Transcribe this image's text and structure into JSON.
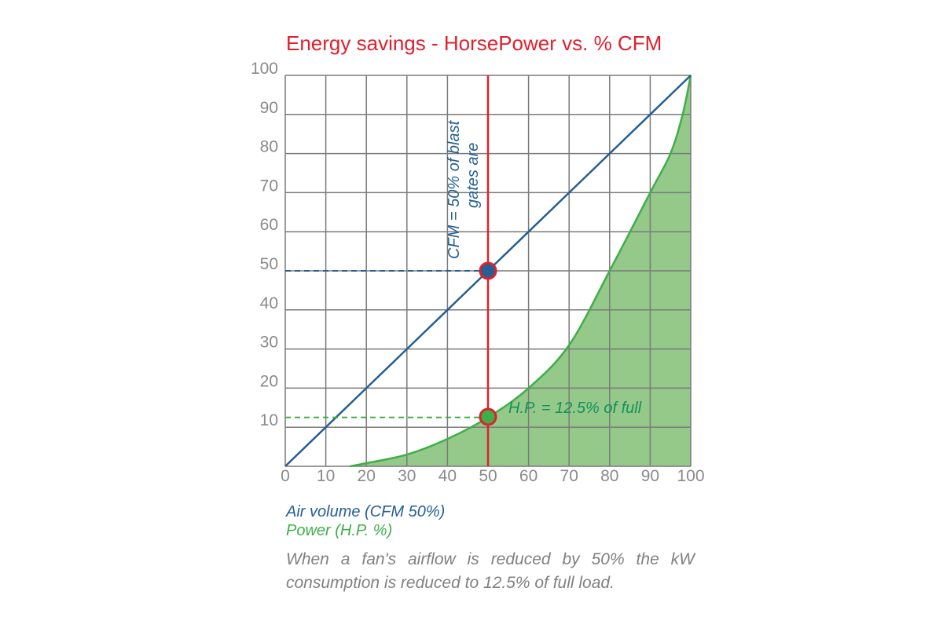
{
  "title": "Energy savings - HorsePower vs. % CFM",
  "legend": {
    "air_volume": "Air volume (CFM 50%)",
    "power": "Power (H.P. %)"
  },
  "caption": "When a fan's airflow is reduced by 50% the kW consumption is reduced to 12.5% of full load.",
  "annotations": {
    "cfm_line1": "CFM = 50% of blast",
    "cfm_line2": "gates are",
    "hp": "H.P. = 12.5% of full"
  },
  "colors": {
    "title": "#e0202e",
    "air_volume": "#255f93",
    "power_line": "#3fae49",
    "power_fill": "#94c98a",
    "marker_ring": "#e0202e",
    "grid": "#7a7a7a",
    "caption": "#808080"
  },
  "x_ticks": [
    "0",
    "10",
    "20",
    "30",
    "40",
    "50",
    "60",
    "70",
    "80",
    "90",
    "100"
  ],
  "y_ticks": [
    "100",
    "90",
    "80",
    "70",
    "60",
    "50",
    "40",
    "30",
    "20",
    "10"
  ],
  "chart_data": {
    "type": "line",
    "title": "Energy savings - HorsePower vs. % CFM",
    "xlabel": "",
    "ylabel": "",
    "xlim": [
      0,
      100
    ],
    "ylim": [
      0,
      100
    ],
    "grid": true,
    "legend_position": "bottom-left",
    "series": [
      {
        "name": "Air volume (CFM 50%)",
        "type": "line",
        "x": [
          0,
          10,
          20,
          30,
          40,
          50,
          60,
          70,
          80,
          90,
          100
        ],
        "y": [
          0,
          10,
          20,
          30,
          40,
          50,
          60,
          70,
          80,
          90,
          100
        ]
      },
      {
        "name": "Power (H.P. %)",
        "type": "area",
        "x": [
          16,
          20,
          30,
          40,
          50,
          60,
          70,
          80,
          90,
          95,
          98,
          100
        ],
        "y": [
          0,
          0.8,
          3,
          7,
          12.5,
          20,
          31,
          50,
          70,
          80,
          90,
          100
        ]
      }
    ],
    "annotations": [
      {
        "text": "CFM = 50% of blast gates are",
        "x": 50,
        "y": 50,
        "type": "vertical-line-marker"
      },
      {
        "text": "H.P. = 12.5% of full",
        "x": 50,
        "y": 12.5,
        "type": "marker"
      }
    ],
    "reference_lines": [
      {
        "orientation": "vertical",
        "x": 50,
        "color": "#e0202e"
      },
      {
        "orientation": "horizontal-dashed",
        "y": 50,
        "x_range": [
          0,
          50
        ],
        "color": "#255f93"
      },
      {
        "orientation": "horizontal-dashed",
        "y": 12.5,
        "x_range": [
          0,
          50
        ],
        "color": "#3fae49"
      }
    ]
  }
}
